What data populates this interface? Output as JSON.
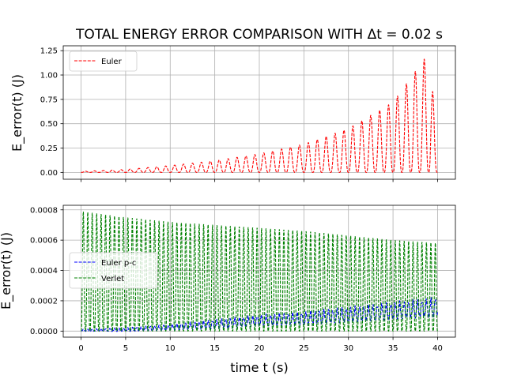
{
  "chart_data": [
    {
      "type": "line",
      "panel": "top",
      "title": "TOTAL ENERGY ERROR COMPARISON WITH Δt = 0.02 s",
      "ylabel": "E_error(t) (J)",
      "xlabel": "",
      "xlim": [
        -2,
        42
      ],
      "ylim": [
        -0.07,
        1.3
      ],
      "xticks": [
        0,
        5,
        10,
        15,
        20,
        25,
        30,
        35,
        40
      ],
      "yticks": [
        0.0,
        0.25,
        0.5,
        0.75,
        1.0,
        1.25
      ],
      "ytick_labels": [
        "0.00",
        "0.25",
        "0.50",
        "0.75",
        "1.00",
        "1.25"
      ],
      "grid": true,
      "legend_position": "top-left",
      "series": [
        {
          "name": "Euler",
          "color": "#ff0000",
          "style": "dashed",
          "oscillation_period_s": 1.0,
          "envelope_t": [
            0,
            5,
            10,
            15,
            20,
            25,
            30,
            35,
            39.2,
            40
          ],
          "envelope_peak": [
            0.01,
            0.03,
            0.07,
            0.12,
            0.19,
            0.29,
            0.45,
            0.72,
            1.25,
            0.0
          ]
        }
      ]
    },
    {
      "type": "line",
      "panel": "bottom",
      "title": "",
      "ylabel": "E_error(t) (J)",
      "xlabel": "time t (s)",
      "xlim": [
        -2,
        42
      ],
      "ylim": [
        -4e-05,
        0.00083
      ],
      "xticks": [
        0,
        5,
        10,
        15,
        20,
        25,
        30,
        35,
        40
      ],
      "xtick_labels": [
        "0",
        "5",
        "10",
        "15",
        "20",
        "25",
        "30",
        "35",
        "40"
      ],
      "yticks": [
        0.0,
        0.0002,
        0.0004,
        0.0006,
        0.0008
      ],
      "ytick_labels": [
        "0.0000",
        "0.0002",
        "0.0004",
        "0.0006",
        "0.0008"
      ],
      "grid": true,
      "legend_position": "center-left",
      "series": [
        {
          "name": "Euler p-c",
          "color": "#0000ff",
          "style": "dashed",
          "oscillation_period_s": 0.5,
          "envelope_t": [
            0,
            5,
            10,
            15,
            20,
            25,
            30,
            35,
            40
          ],
          "envelope_peak": [
            1e-05,
            2e-05,
            4e-05,
            7e-05,
            0.0001,
            0.00012,
            0.00015,
            0.00018,
            0.00021
          ],
          "envelope_floor": [
            0.0,
            0.0,
            1e-05,
            2e-05,
            4e-05,
            5e-05,
            7e-05,
            9e-05,
            0.00011
          ]
        },
        {
          "name": "Verlet",
          "color": "#008000",
          "style": "dashed",
          "oscillation_period_s": 0.5,
          "envelope_t": [
            0,
            5,
            10,
            15,
            20,
            25,
            30,
            35,
            40
          ],
          "envelope_peak": [
            0.00079,
            0.00075,
            0.00072,
            0.0007,
            0.00068,
            0.00066,
            0.00063,
            0.0006,
            0.00058
          ],
          "envelope_floor": [
            0.0,
            0.0,
            0.0,
            0.0,
            0.0,
            0.0,
            0.0,
            0.0,
            0.0
          ]
        }
      ]
    }
  ]
}
